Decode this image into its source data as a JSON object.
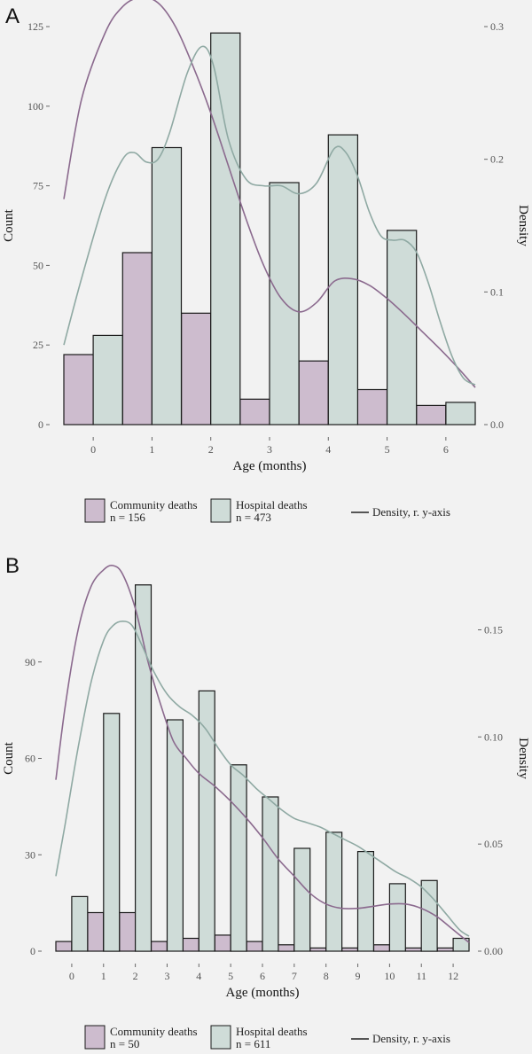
{
  "colors": {
    "background": "#f2f2f2",
    "community_fill": "#cdbcce",
    "hospital_fill": "#cfdcd8",
    "bar_stroke": "#1a1a1a",
    "community_line": "#8b6a8e",
    "hospital_line": "#8fa9a3"
  },
  "legend": {
    "density_label": "Density, r. y-axis",
    "community_label": "Community deaths",
    "hospital_label": "Hospital deaths"
  },
  "chart_data": [
    {
      "panel": "A",
      "type": "bar",
      "xlabel": "Age (months)",
      "ylabel": "Count",
      "y2label": "Density",
      "categories": [
        0,
        1,
        2,
        3,
        4,
        5,
        6
      ],
      "xlim": [
        -0.5,
        6.5
      ],
      "ylim": [
        0,
        125
      ],
      "yticks": [
        0,
        25,
        50,
        75,
        100,
        125
      ],
      "y2lim": [
        0,
        0.3
      ],
      "y2ticks": [
        "0.0",
        "0.1",
        "0.2",
        "0.3"
      ],
      "grid": false,
      "legend_position": "bottom",
      "series": [
        {
          "name": "Community deaths",
          "n_label": "n = 156",
          "values": [
            22,
            54,
            35,
            8,
            20,
            11,
            6
          ]
        },
        {
          "name": "Hospital deaths",
          "n_label": "n = 473",
          "values": [
            28,
            87,
            123,
            76,
            91,
            61,
            7
          ]
        }
      ],
      "density": [
        {
          "series": "Community deaths",
          "x": [
            -0.5,
            -0.2,
            0.2,
            0.5,
            0.8,
            1.1,
            1.4,
            1.7,
            2.0,
            2.3,
            2.6,
            2.9,
            3.2,
            3.5,
            3.8,
            4.1,
            4.4,
            4.7,
            5.0,
            5.3,
            5.6,
            5.9,
            6.2,
            6.5
          ],
          "y": [
            0.17,
            0.245,
            0.295,
            0.315,
            0.322,
            0.318,
            0.3,
            0.27,
            0.235,
            0.195,
            0.155,
            0.12,
            0.095,
            0.085,
            0.092,
            0.108,
            0.11,
            0.105,
            0.095,
            0.083,
            0.07,
            0.057,
            0.043,
            0.028
          ]
        },
        {
          "series": "Hospital deaths",
          "x": [
            -0.5,
            -0.2,
            0.2,
            0.5,
            0.7,
            0.9,
            1.1,
            1.3,
            1.6,
            1.85,
            2.05,
            2.3,
            2.6,
            2.9,
            3.2,
            3.5,
            3.8,
            4.1,
            4.3,
            4.5,
            4.7,
            4.9,
            5.1,
            5.3,
            5.5,
            5.7,
            5.9,
            6.1,
            6.3,
            6.5
          ],
          "y": [
            0.06,
            0.11,
            0.17,
            0.2,
            0.205,
            0.198,
            0.2,
            0.22,
            0.265,
            0.285,
            0.27,
            0.215,
            0.185,
            0.18,
            0.18,
            0.174,
            0.182,
            0.208,
            0.205,
            0.187,
            0.16,
            0.142,
            0.139,
            0.139,
            0.13,
            0.107,
            0.078,
            0.052,
            0.035,
            0.03
          ]
        }
      ]
    },
    {
      "panel": "B",
      "type": "bar",
      "xlabel": "Age (months)",
      "ylabel": "Count",
      "y2label": "Density",
      "categories": [
        0,
        1,
        2,
        3,
        4,
        5,
        6,
        7,
        8,
        9,
        10,
        11,
        12
      ],
      "xlim": [
        -0.5,
        12.5
      ],
      "ylim": [
        0,
        120
      ],
      "yticks": [
        0,
        30,
        60,
        90
      ],
      "y2lim": [
        0,
        0.18
      ],
      "y2ticks": [
        "0.00",
        "0.05",
        "0.10",
        "0.15"
      ],
      "grid": false,
      "legend_position": "bottom",
      "series": [
        {
          "name": "Community deaths",
          "n_label": "n = 50",
          "values": [
            3,
            12,
            12,
            3,
            4,
            5,
            3,
            2,
            1,
            1,
            2,
            1,
            1
          ]
        },
        {
          "name": "Hospital deaths",
          "n_label": "n = 611",
          "values": [
            17,
            74,
            114,
            72,
            81,
            58,
            48,
            32,
            37,
            31,
            21,
            22,
            4
          ]
        }
      ],
      "density": [
        {
          "series": "Community deaths",
          "x": [
            -0.5,
            -0.2,
            0.2,
            0.6,
            1.0,
            1.3,
            1.6,
            2.0,
            2.4,
            2.8,
            3.2,
            3.6,
            4.0,
            4.5,
            5.0,
            5.5,
            6.0,
            6.5,
            7.0,
            7.5,
            8.0,
            8.5,
            9.0,
            9.5,
            10.0,
            10.5,
            11.0,
            11.5,
            12.0,
            12.5
          ],
          "y": [
            0.08,
            0.115,
            0.15,
            0.17,
            0.178,
            0.18,
            0.176,
            0.16,
            0.135,
            0.115,
            0.098,
            0.09,
            0.083,
            0.077,
            0.07,
            0.062,
            0.053,
            0.043,
            0.035,
            0.027,
            0.022,
            0.02,
            0.02,
            0.021,
            0.022,
            0.022,
            0.02,
            0.016,
            0.01,
            0.004
          ]
        },
        {
          "series": "Hospital deaths",
          "x": [
            -0.5,
            -0.2,
            0.2,
            0.6,
            1.0,
            1.3,
            1.6,
            1.9,
            2.2,
            2.6,
            3.0,
            3.4,
            3.8,
            4.2,
            4.6,
            5.0,
            5.4,
            5.8,
            6.2,
            6.6,
            7.0,
            7.4,
            7.8,
            8.2,
            8.6,
            9.0,
            9.4,
            9.8,
            10.2,
            10.6,
            11.0,
            11.4,
            11.8,
            12.2,
            12.5
          ],
          "y": [
            0.035,
            0.06,
            0.095,
            0.125,
            0.145,
            0.152,
            0.154,
            0.152,
            0.143,
            0.13,
            0.12,
            0.114,
            0.11,
            0.104,
            0.095,
            0.087,
            0.082,
            0.076,
            0.071,
            0.066,
            0.062,
            0.06,
            0.058,
            0.055,
            0.052,
            0.049,
            0.045,
            0.041,
            0.037,
            0.034,
            0.03,
            0.024,
            0.017,
            0.01,
            0.007
          ]
        }
      ]
    }
  ]
}
